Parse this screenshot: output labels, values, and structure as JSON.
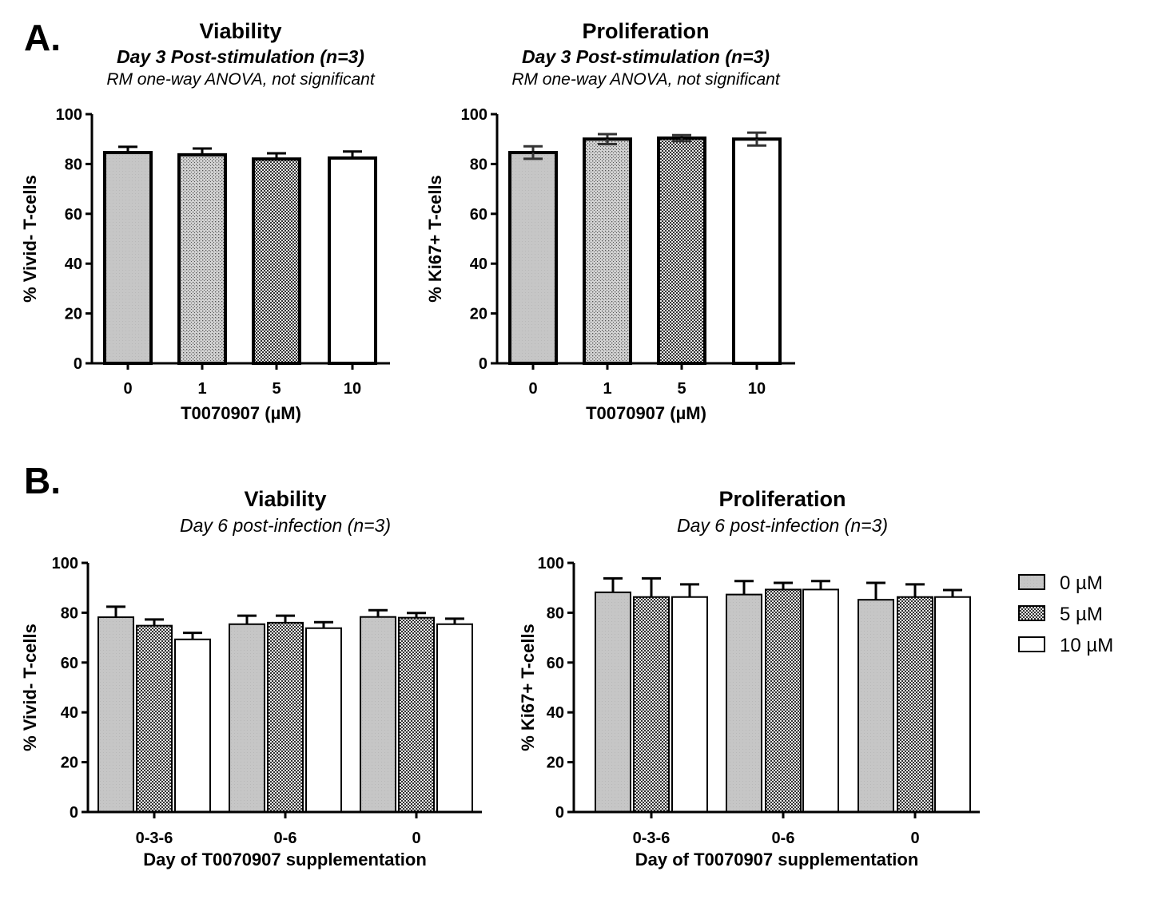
{
  "panels": {
    "a": "A.",
    "b": "B."
  },
  "colors": {
    "gray": "#c4c4c4",
    "outline": "#000000",
    "white": "#ffffff"
  },
  "legend": {
    "items": [
      "0 µM",
      "5 µM",
      "10 µM"
    ],
    "patterns": [
      "gray",
      "checker",
      "white"
    ],
    "placement": "right"
  },
  "chart_data": [
    {
      "type": "bar",
      "title": "Viability",
      "subtitle": "Day 3 Post-stimulation (n=3)",
      "note": "RM one-way ANOVA, not significant",
      "xlabel": "T0070907 (µM)",
      "ylabel": "% Vivid- T-cells",
      "ylim": [
        0,
        100
      ],
      "yticks": [
        "0",
        "20",
        "40",
        "60",
        "80",
        "100"
      ],
      "categories": [
        "0",
        "1",
        "5",
        "10"
      ],
      "patterns": [
        "gray",
        "dots",
        "checker",
        "white"
      ],
      "values": [
        84.6,
        83.7,
        82.0,
        82.4
      ],
      "errors": [
        2.3,
        2.5,
        2.3,
        2.6
      ],
      "error_style": "up"
    },
    {
      "type": "bar",
      "title": "Proliferation",
      "subtitle": "Day 3 Post-stimulation (n=3)",
      "note": "RM one-way ANOVA, not significant",
      "xlabel": "T0070907 (µM)",
      "ylabel": "% Ki67+ T-cells",
      "ylim": [
        0,
        100
      ],
      "yticks": [
        "0",
        "20",
        "40",
        "60",
        "80",
        "100"
      ],
      "categories": [
        "0",
        "1",
        "5",
        "10"
      ],
      "patterns": [
        "gray",
        "dots",
        "checker",
        "white"
      ],
      "values": [
        84.6,
        90.0,
        90.4,
        90.0
      ],
      "errors": [
        2.5,
        2.0,
        1.2,
        2.6
      ],
      "error_style": "both"
    },
    {
      "type": "bar",
      "title": "Viability",
      "subtitle": "Day 6 post-infection (n=3)",
      "xlabel": "Day of T0070907 supplementation",
      "ylabel": "% Vivid- T-cells",
      "ylim": [
        0,
        100
      ],
      "yticks": [
        "0",
        "20",
        "40",
        "60",
        "80",
        "100"
      ],
      "categories": [
        "0-3-6",
        "0-6",
        "0"
      ],
      "series": [
        {
          "name": "0 µM",
          "values": [
            78.2,
            75.4,
            78.3
          ],
          "errors": [
            4.2,
            3.4,
            2.7
          ]
        },
        {
          "name": "5 µM",
          "values": [
            74.8,
            76.0,
            78.0
          ],
          "errors": [
            2.5,
            2.8,
            1.9
          ]
        },
        {
          "name": "10 µM",
          "values": [
            69.3,
            73.8,
            75.4
          ],
          "errors": [
            2.6,
            2.4,
            2.2
          ]
        }
      ],
      "error_style": "up"
    },
    {
      "type": "bar",
      "title": "Proliferation",
      "subtitle": "Day 6 post-infection (n=3)",
      "xlabel": "Day of T0070907 supplementation",
      "ylabel": "% Ki67+ T-cells",
      "ylim": [
        0,
        100
      ],
      "yticks": [
        "0",
        "20",
        "40",
        "60",
        "80",
        "100"
      ],
      "categories": [
        "0-3-6",
        "0-6",
        "0"
      ],
      "series": [
        {
          "name": "0 µM",
          "values": [
            88.2,
            87.3,
            85.2
          ],
          "errors": [
            5.6,
            5.4,
            6.8
          ]
        },
        {
          "name": "5 µM",
          "values": [
            86.3,
            89.3,
            86.3
          ],
          "errors": [
            7.5,
            2.7,
            5.1
          ]
        },
        {
          "name": "10 µM",
          "values": [
            86.3,
            89.3,
            86.3
          ],
          "errors": [
            5.1,
            3.4,
            2.8
          ]
        }
      ],
      "error_style": "up"
    }
  ]
}
